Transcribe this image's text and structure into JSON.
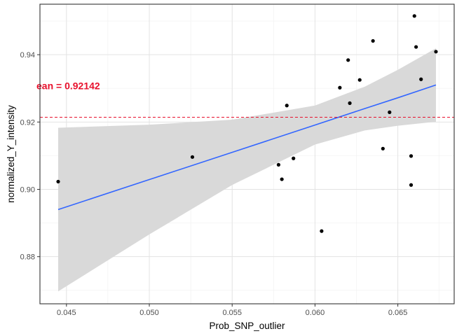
{
  "chart_data": {
    "type": "scatter",
    "xlabel": "Prob_SNP_outlier",
    "ylabel": "normalized_Y_intensity",
    "xlim": [
      0.0434,
      0.0684
    ],
    "ylim": [
      0.866,
      0.955
    ],
    "x_ticks": [
      0.045,
      0.05,
      0.055,
      0.06,
      0.065
    ],
    "x_tick_labels": [
      "0.045",
      "0.050",
      "0.055",
      "0.060",
      "0.065"
    ],
    "y_ticks": [
      0.88,
      0.9,
      0.92,
      0.94
    ],
    "y_tick_labels": [
      "0.88",
      "0.90",
      "0.92",
      "0.94"
    ],
    "grid": true,
    "points": [
      {
        "x": 0.0445,
        "y": 0.9023
      },
      {
        "x": 0.0526,
        "y": 0.9096
      },
      {
        "x": 0.0578,
        "y": 0.9073
      },
      {
        "x": 0.058,
        "y": 0.903
      },
      {
        "x": 0.0583,
        "y": 0.9249
      },
      {
        "x": 0.0587,
        "y": 0.9092
      },
      {
        "x": 0.0604,
        "y": 0.8876
      },
      {
        "x": 0.0615,
        "y": 0.9302
      },
      {
        "x": 0.062,
        "y": 0.9384
      },
      {
        "x": 0.0621,
        "y": 0.9256
      },
      {
        "x": 0.0627,
        "y": 0.9325
      },
      {
        "x": 0.0635,
        "y": 0.9441
      },
      {
        "x": 0.0641,
        "y": 0.9121
      },
      {
        "x": 0.0645,
        "y": 0.9229
      },
      {
        "x": 0.0658,
        "y": 0.9099
      },
      {
        "x": 0.0658,
        "y": 0.9013
      },
      {
        "x": 0.066,
        "y": 0.9515
      },
      {
        "x": 0.0661,
        "y": 0.9423
      },
      {
        "x": 0.0664,
        "y": 0.9327
      },
      {
        "x": 0.0673,
        "y": 0.9409
      }
    ],
    "regression": {
      "x": [
        0.0445,
        0.05,
        0.055,
        0.06,
        0.063,
        0.065,
        0.0673
      ],
      "fit": [
        0.894,
        0.9029,
        0.911,
        0.9191,
        0.924,
        0.9272,
        0.931
      ],
      "lower": [
        0.8697,
        0.8866,
        0.9013,
        0.9133,
        0.9175,
        0.9189,
        0.9201
      ],
      "upper": [
        0.9183,
        0.9192,
        0.9207,
        0.9249,
        0.9305,
        0.9355,
        0.9419
      ],
      "line_color": "#3366ff",
      "band_color": "#d9d9d9"
    },
    "mean_line": {
      "y": 0.92142,
      "color": "#e8112d",
      "style": "dashed"
    },
    "annotation": {
      "text": "ean = 0.92142",
      "x": 0.0434,
      "y": 0.9308,
      "color": "#e8112d"
    },
    "point_color": "#000000"
  }
}
